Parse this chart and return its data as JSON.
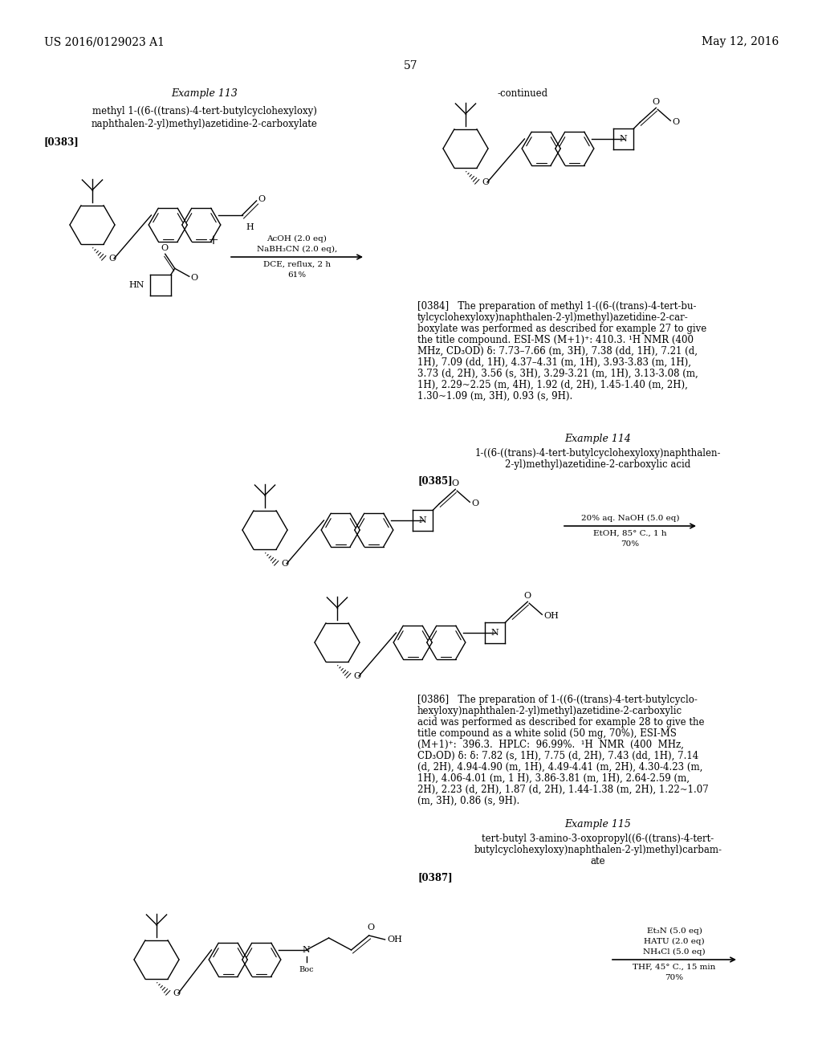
{
  "page_number": "57",
  "header_left": "US 2016/0129023 A1",
  "header_right": "May 12, 2016",
  "background_color": "#ffffff"
}
